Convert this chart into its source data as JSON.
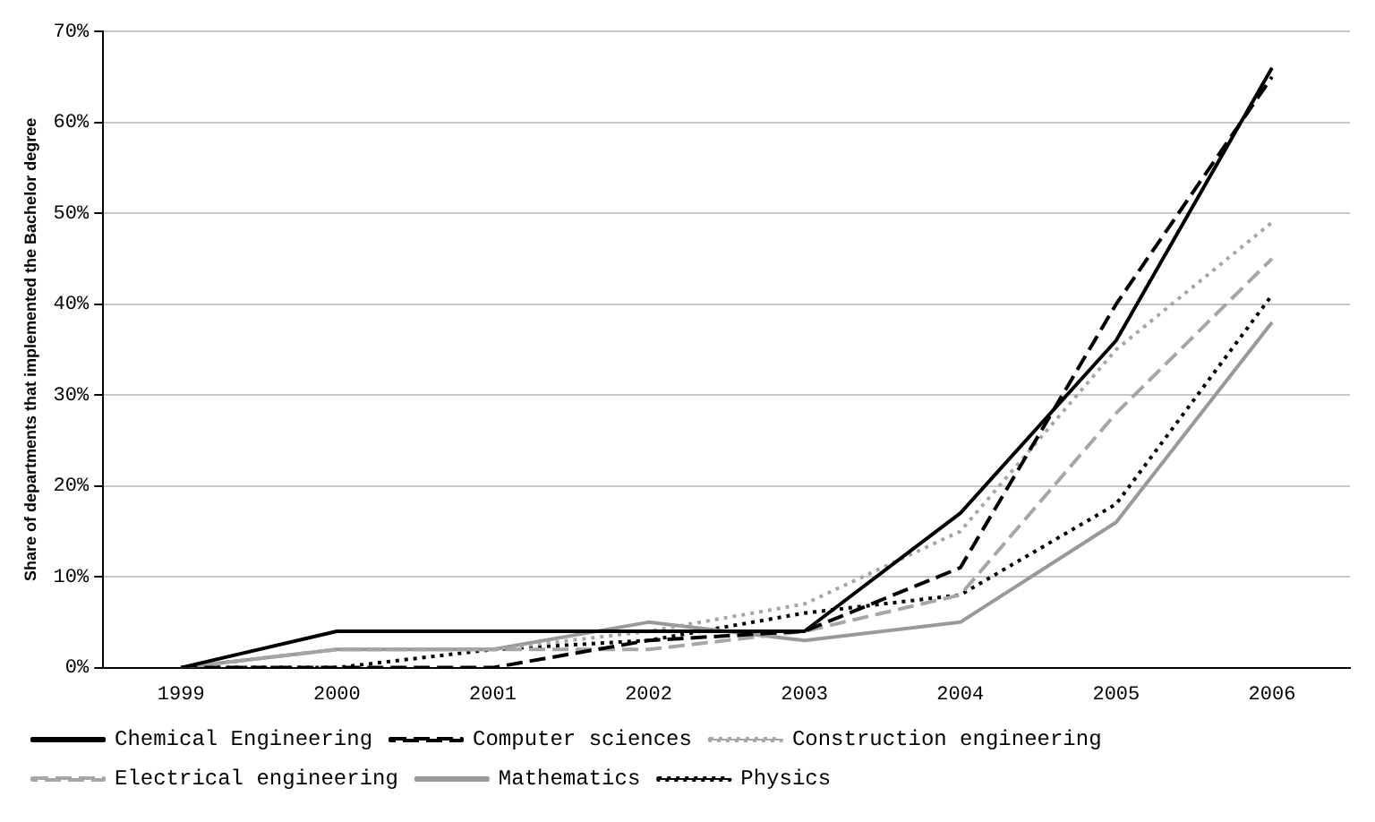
{
  "chart_data": {
    "type": "line",
    "ylabel": "Share of departments that implemented the Bachelor degree",
    "categories": [
      "1999",
      "2000",
      "2001",
      "2002",
      "2003",
      "2004",
      "2005",
      "2006"
    ],
    "series": [
      {
        "name": "Chemical Engineering",
        "color": "#000000",
        "line_style": "solid",
        "values": [
          0,
          4,
          4,
          4,
          4,
          17,
          36,
          66
        ]
      },
      {
        "name": "Computer sciences",
        "color": "#000000",
        "line_style": "dashed",
        "values": [
          0,
          0,
          0,
          3,
          4,
          11,
          40,
          65
        ]
      },
      {
        "name": "Construction engineering",
        "color": "#a6a6a6",
        "line_style": "dotted",
        "values": [
          0,
          2,
          2,
          4,
          7,
          15,
          35,
          49
        ]
      },
      {
        "name": "Electrical engineering",
        "color": "#a6a6a6",
        "line_style": "dashed",
        "values": [
          0,
          2,
          2,
          2,
          4,
          8,
          28,
          45
        ]
      },
      {
        "name": "Mathematics",
        "color": "#999999",
        "line_style": "solid",
        "values": [
          0,
          2,
          2,
          5,
          3,
          5,
          16,
          38
        ]
      },
      {
        "name": "Physics",
        "color": "#000000",
        "line_style": "dotted",
        "values": [
          0,
          0,
          2,
          3,
          6,
          8,
          18,
          41
        ]
      }
    ],
    "ylim": [
      0,
      70
    ],
    "yticks": [
      {
        "value": 0,
        "label": "0%"
      },
      {
        "value": 10,
        "label": "10%"
      },
      {
        "value": 20,
        "label": "20%"
      },
      {
        "value": 30,
        "label": "30%"
      },
      {
        "value": 40,
        "label": "40%"
      },
      {
        "value": 50,
        "label": "50%"
      },
      {
        "value": 60,
        "label": "60%"
      },
      {
        "value": 70,
        "label": "70%"
      }
    ],
    "grid": "y",
    "legend": "bottom",
    "marker": "none"
  }
}
